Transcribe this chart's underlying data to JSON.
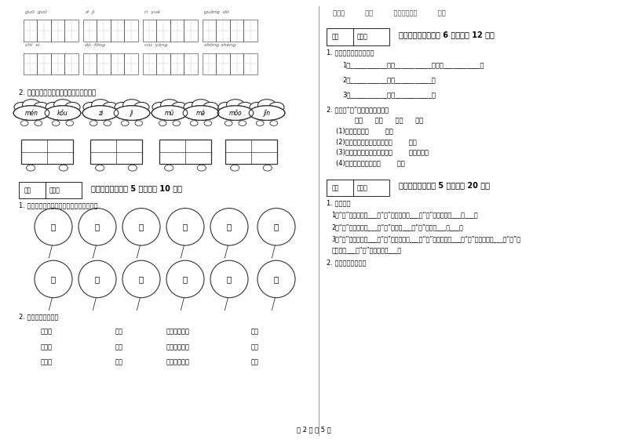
{
  "title": "",
  "bg_color": "#ffffff",
  "page_num": "第 2 页 共 5 页",
  "top_row1_pinyins": [
    "guō  guǒ",
    "zì  jì",
    "rì  yuè",
    "guǎng  dò"
  ],
  "top_row2_pinyins": [
    "chī  xì",
    "dò  fōng",
    "niú  yōng",
    "shōng shéng"
  ],
  "section2_instruction": "2. 我会读准拼音，还能写出正确的汉字。",
  "cloud_pairs": [
    {
      "l1": "mén",
      "l2": "kǒu"
    },
    {
      "l1": "zì",
      "l2": "jì"
    },
    {
      "l1": "mǔ",
      "l2": "mǎ"
    },
    {
      "l1": "mōo",
      "l2": "jīn"
    }
  ],
  "section4_title": "四、连一连（每题 5 分，共计 10 分）",
  "section4_instr1": "1. 哪两个气球可以连在一起，请你连一连。",
  "balloon_row1": [
    "松",
    "朋",
    "田",
    "黑",
    "蓝",
    "站"
  ],
  "balloon_row2": [
    "野",
    "影",
    "鼠",
    "友",
    "乡",
    "天"
  ],
  "section4_instr2": "2. 想一想，连一连。",
  "connect_col1": [
    "暖和的",
    "高高的",
    "雪白的"
  ],
  "connect_col2": [
    "大山",
    "云朵",
    "小草"
  ],
  "connect_col3": [
    "蓝蓝的天空像",
    "闪闪的星星像",
    "灿烂的阳光像"
  ],
  "connect_col4": [
    "钒石",
    "金子",
    "小船"
  ],
  "right_top_words": "绿色的          衣茄          弯弯的月亮像          大海",
  "section5_title": "五、补充句子（每题 6 分，共计 12 分）",
  "section5_instr": "1. 我会把句子补充完整。",
  "fill_lines": [
    "1、___________那么___________，那么___________。",
    "2、___________十分___________。",
    "3、___________常常___________。"
  ],
  "section5_2_instr": "2. 选择和“心”组成的词语填在句",
  "heart_words": "小心      放心      担心      开心",
  "heart_sentences": [
    "(1)班长做事很（        ）。",
    "(2)妹妹得到了评娃娃，非常（        ）。",
    "(3)奶奶的身体好了，妈妈才（        ）地回家。",
    "(4)小朋友过马路时要（        ）。"
  ],
  "section6_title": "六、综合题（每题 5 分，共计 20 分）",
  "section6_instr1": "1. 我会变。",
  "section6_lines": [
    "1、“十”加一笔变成___，“十”加两笔变成___，“十”加三笔变成___，___。",
    "2、“人”加一笔变成___，“人”加两笔___，“人”加两笔___，___。",
    "3、“日”加一笔变成___，“日”加一笔变成___，“日”加一笔变成___，“米”加一笔变成___，“了”加",
    "一笔变成___，“大”加一笔变成___。"
  ],
  "section6_instr2": "2. 我还儿歌最本领。"
}
